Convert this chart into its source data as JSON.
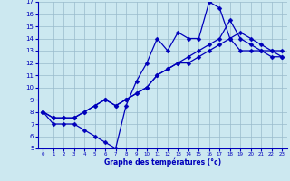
{
  "xlabel": "Graphe des températures (°c)",
  "x_hours": [
    0,
    1,
    2,
    3,
    4,
    5,
    6,
    7,
    8,
    9,
    10,
    11,
    12,
    13,
    14,
    15,
    16,
    17,
    18,
    19,
    20,
    21,
    22,
    23
  ],
  "line1": [
    8,
    7,
    7,
    7,
    6.5,
    6,
    5.5,
    5,
    8.5,
    10.5,
    12,
    14,
    13,
    14.5,
    14,
    14,
    17,
    16.5,
    14,
    13,
    13,
    13,
    13,
    13
  ],
  "line2": [
    8,
    7.5,
    7.5,
    7.5,
    8,
    8.5,
    9,
    8.5,
    9,
    9.5,
    10,
    11,
    11.5,
    12,
    12,
    12.5,
    13,
    13.5,
    14,
    14.5,
    14,
    13.5,
    13,
    12.5
  ],
  "line3": [
    8,
    7.5,
    7.5,
    7.5,
    8,
    8.5,
    9,
    8.5,
    9,
    9.5,
    10,
    11,
    11.5,
    12,
    12.5,
    13,
    13.5,
    14,
    15.5,
    14,
    13.5,
    13,
    12.5,
    12.5
  ],
  "line_color": "#0000bb",
  "bg_color": "#cce8f0",
  "grid_color": "#99bbcc",
  "xlim": [
    -0.5,
    23.5
  ],
  "ylim": [
    5,
    17
  ],
  "yticks": [
    5,
    6,
    7,
    8,
    9,
    10,
    11,
    12,
    13,
    14,
    15,
    16,
    17
  ],
  "xticks": [
    0,
    1,
    2,
    3,
    4,
    5,
    6,
    7,
    8,
    9,
    10,
    11,
    12,
    13,
    14,
    15,
    16,
    17,
    18,
    19,
    20,
    21,
    22,
    23
  ],
  "marker": "D",
  "markersize": 2.5,
  "linewidth": 0.9
}
